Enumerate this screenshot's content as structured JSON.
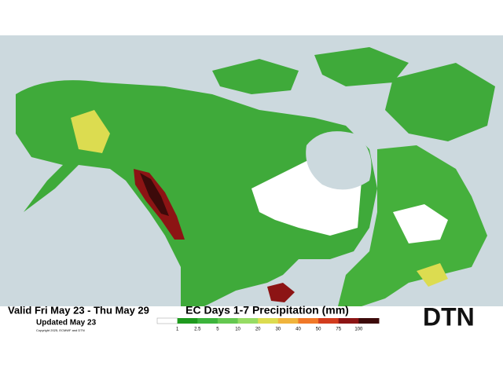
{
  "header": {
    "valid": "Valid Fri May 23 - Thu May 29",
    "updated": "Updated May 23",
    "copyright": "Copyright 2025, ECMWF and DTN"
  },
  "legend": {
    "title": "EC Days 1-7 Precipitation (mm)",
    "ticks": [
      1,
      2.5,
      5,
      10,
      20,
      30,
      40,
      50,
      75,
      100
    ],
    "colors": [
      "#ffffff",
      "#1e9a1e",
      "#3cb43c",
      "#64c850",
      "#96dc64",
      "#dcdc50",
      "#f0b43c",
      "#f07828",
      "#d23c1e",
      "#8c1414",
      "#3c0a0a"
    ]
  },
  "logo": "DTN"
}
